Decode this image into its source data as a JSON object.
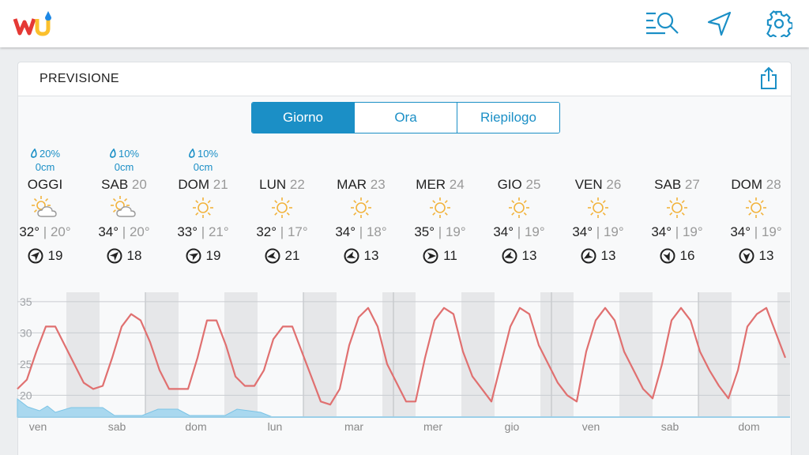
{
  "header": {
    "title": "PREVISIONE"
  },
  "tabs": [
    "Giorno",
    "Ora",
    "Riepilogo"
  ],
  "active_tab": 0,
  "days": [
    {
      "precip": "20%",
      "amount": "0cm",
      "name": "OGGI",
      "icon": "partly-cloudy",
      "high": "32°",
      "low": "20°",
      "wind": 19,
      "wind_dir": 45
    },
    {
      "precip": "10%",
      "amount": "0cm",
      "name": "SAB",
      "date": "20",
      "icon": "partly-cloudy",
      "high": "34°",
      "low": "20°",
      "wind": 18,
      "wind_dir": 45
    },
    {
      "precip": "10%",
      "amount": "0cm",
      "name": "DOM",
      "date": "21",
      "icon": "sunny",
      "high": "33°",
      "low": "21°",
      "wind": 19,
      "wind_dir": 60
    },
    {
      "name": "LUN",
      "date": "22",
      "icon": "sunny",
      "high": "32°",
      "low": "17°",
      "wind": 21,
      "wind_dir": 260
    },
    {
      "name": "MAR",
      "date": "23",
      "icon": "sunny",
      "high": "34°",
      "low": "18°",
      "wind": 13,
      "wind_dir": 250
    },
    {
      "name": "MER",
      "date": "24",
      "icon": "sunny",
      "high": "35°",
      "low": "19°",
      "wind": 11,
      "wind_dir": 90
    },
    {
      "name": "GIO",
      "date": "25",
      "icon": "sunny",
      "high": "34°",
      "low": "19°",
      "wind": 13,
      "wind_dir": 250
    },
    {
      "name": "VEN",
      "date": "26",
      "icon": "sunny",
      "high": "34°",
      "low": "19°",
      "wind": 13,
      "wind_dir": 240
    },
    {
      "name": "SAB",
      "date": "27",
      "icon": "sunny",
      "high": "34°",
      "low": "19°",
      "wind": 16,
      "wind_dir": 160
    },
    {
      "name": "DOM",
      "date": "28",
      "icon": "sunny",
      "high": "34°",
      "low": "19°",
      "wind": 13,
      "wind_dir": 180
    }
  ],
  "chart_data": {
    "type": "line",
    "color": "#e07070",
    "ylim": [
      16.5,
      36.5
    ],
    "yticks": [
      20,
      25,
      30,
      35
    ],
    "grid": true,
    "x_labels": [
      "ven",
      "sab",
      "dom",
      "lun",
      "mar",
      "mer",
      "gio",
      "ven",
      "sab",
      "dom"
    ],
    "values": [
      21,
      22.5,
      27,
      31,
      31,
      28,
      25,
      22,
      21,
      21.5,
      26,
      31,
      33,
      32,
      28.5,
      24,
      21,
      21,
      21,
      26,
      32,
      32,
      28,
      23,
      21.5,
      21.5,
      24,
      29,
      31,
      31,
      27,
      23,
      19,
      18.5,
      21,
      28,
      32.5,
      34,
      31,
      25,
      22,
      19,
      19,
      26,
      32,
      34,
      33,
      27,
      23,
      21,
      19,
      25,
      31,
      34,
      33,
      28,
      25,
      22,
      20,
      19,
      27,
      32,
      34,
      32,
      27,
      24,
      21,
      19.5,
      25,
      32,
      34,
      32,
      27,
      24,
      21.5,
      19.5,
      24,
      31,
      33,
      34,
      30,
      26
    ]
  }
}
